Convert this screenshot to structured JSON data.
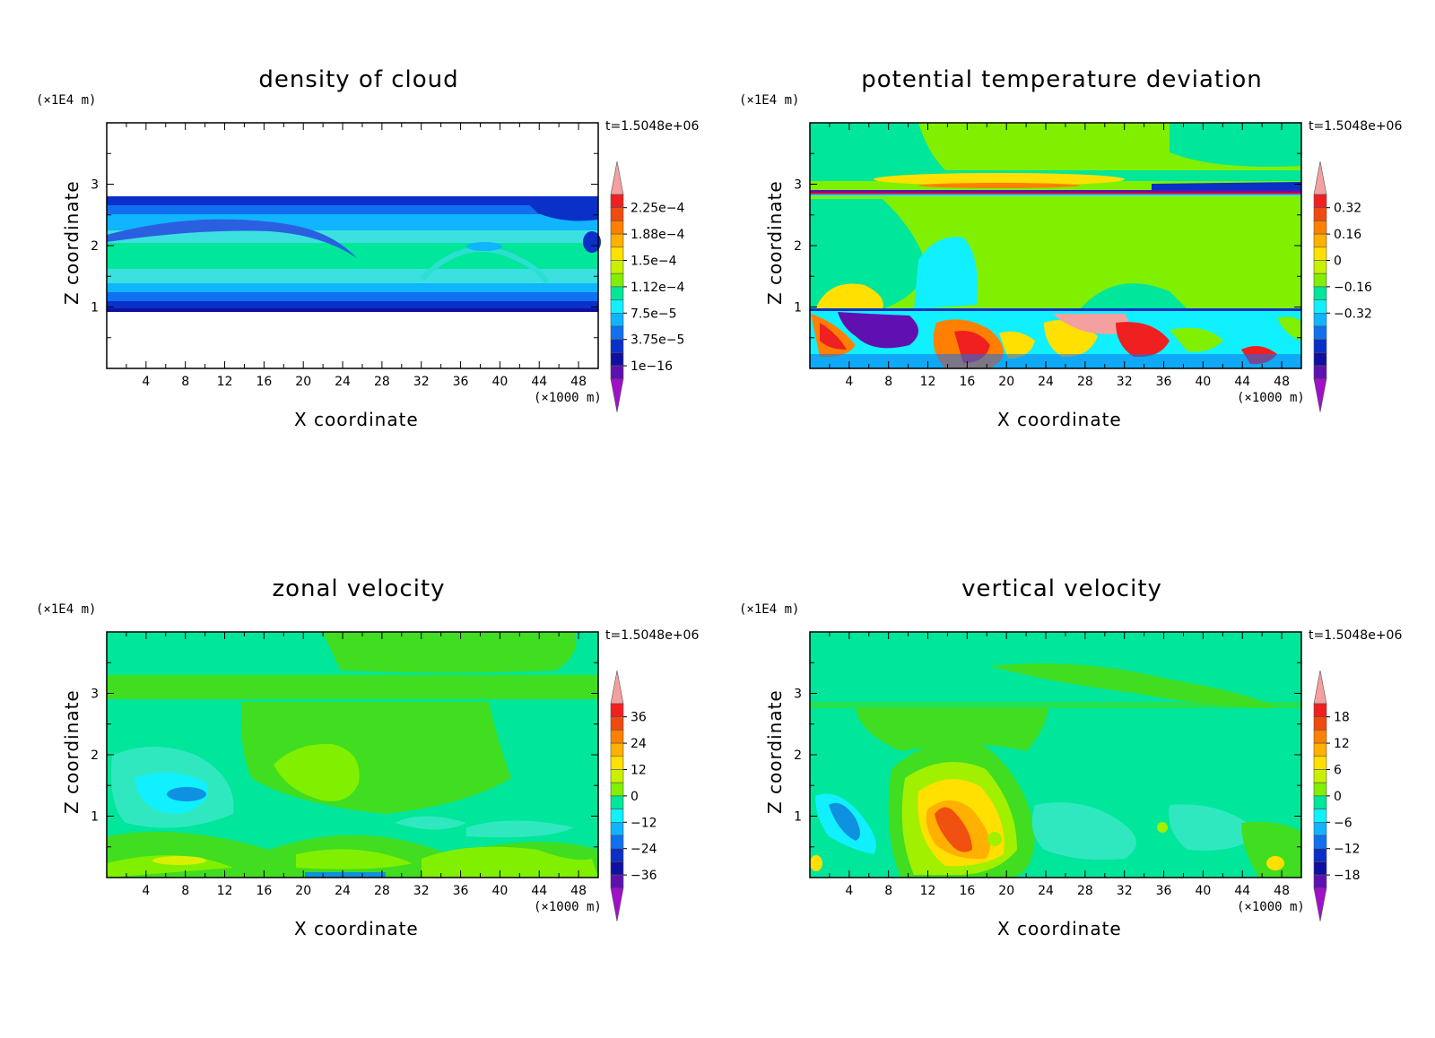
{
  "chart_data": [
    {
      "type": "heatmap",
      "title": "density of cloud",
      "xlabel": "X coordinate",
      "ylabel": "Z coordinate",
      "x_unit": "(×1000 m)",
      "z_unit": "(×1E4 m)",
      "time_label": "t=1.5048e+06",
      "xlim": [
        0,
        50
      ],
      "ylim": [
        0,
        4
      ],
      "x_ticks": [
        "4",
        "8",
        "12",
        "16",
        "20",
        "24",
        "28",
        "32",
        "36",
        "40",
        "44",
        "48"
      ],
      "y_ticks": [
        "1",
        "2",
        "3"
      ],
      "colorbar_labels": [
        "2.25e-4",
        "1.88e-4",
        "1.5e-4",
        "1.12e-4",
        "7.5e-5",
        "3.75e-5",
        "1e-16"
      ],
      "colorbar_label_index": [
        2,
        4,
        6,
        8,
        10,
        12,
        14
      ],
      "cloud_layer_z": [
        0.95,
        2.75
      ],
      "background": "#ffffff",
      "field_colors": {
        "base": "#00e69a",
        "edge": "#0a30c8",
        "mid": "#10b4ff",
        "light": "#3ce0e0",
        "arc": "#2a60e0"
      }
    },
    {
      "type": "heatmap",
      "title": "potential temperature deviation",
      "xlabel": "X coordinate",
      "ylabel": "Z coordinate",
      "x_unit": "(×1000 m)",
      "z_unit": "(×1E4 m)",
      "time_label": "t=1.5048e+06",
      "xlim": [
        0,
        50
      ],
      "ylim": [
        0,
        4
      ],
      "x_ticks": [
        "4",
        "8",
        "12",
        "16",
        "20",
        "24",
        "28",
        "32",
        "36",
        "40",
        "44",
        "48"
      ],
      "y_ticks": [
        "1",
        "2",
        "3"
      ],
      "colorbar_labels": [
        "0.32",
        "0.16",
        "0",
        "-0.16",
        "-0.32"
      ],
      "colorbar_label_index": [
        2,
        4,
        6,
        8,
        10
      ],
      "background": "#80f000",
      "field_colors": {
        "base": "#80f000",
        "green": "#00e69a",
        "cyan": "#10f0ff",
        "blue": "#0a30c8",
        "purple": "#6010b0",
        "red": "#f02020",
        "orange": "#ff8000",
        "yellow": "#ffe000",
        "pink": "#f4a0a0"
      }
    },
    {
      "type": "heatmap",
      "title": "zonal velocity",
      "xlabel": "X coordinate",
      "ylabel": "Z coordinate",
      "x_unit": "(×1000 m)",
      "z_unit": "(×1E4 m)",
      "time_label": "t=1.5048e+06",
      "xlim": [
        0,
        50
      ],
      "ylim": [
        0,
        4
      ],
      "x_ticks": [
        "4",
        "8",
        "12",
        "16",
        "20",
        "24",
        "28",
        "32",
        "36",
        "40",
        "44",
        "48"
      ],
      "y_ticks": [
        "1",
        "2",
        "3"
      ],
      "colorbar_labels": [
        "36",
        "24",
        "12",
        "0",
        "-12",
        "-24",
        "-36"
      ],
      "colorbar_label_index": [
        2,
        4,
        6,
        8,
        10,
        12,
        14
      ],
      "background": "#00e69a",
      "field_colors": {
        "base": "#00e69a",
        "green": "#40dd20",
        "lime": "#80f000",
        "cyan": "#10f0ff",
        "teal": "#30e8c0",
        "blue": "#1090e0",
        "yellow": "#d8f000"
      }
    },
    {
      "type": "heatmap",
      "title": "vertical velocity",
      "xlabel": "X coordinate",
      "ylabel": "Z coordinate",
      "x_unit": "(×1000 m)",
      "z_unit": "(×1E4 m)",
      "time_label": "t=1.5048e+06",
      "xlim": [
        0,
        50
      ],
      "ylim": [
        0,
        4
      ],
      "x_ticks": [
        "4",
        "8",
        "12",
        "16",
        "20",
        "24",
        "28",
        "32",
        "36",
        "40",
        "44",
        "48"
      ],
      "y_ticks": [
        "1",
        "2",
        "3"
      ],
      "colorbar_labels": [
        "18",
        "12",
        "6",
        "0",
        "-6",
        "-12",
        "-18"
      ],
      "colorbar_label_index": [
        2,
        4,
        6,
        8,
        10,
        12,
        14
      ],
      "background": "#00e69a",
      "field_colors": {
        "base": "#00e69a",
        "green": "#40dd20",
        "lime": "#a0f000",
        "yellow": "#ffe000",
        "orange": "#ff9000",
        "redorange": "#f05010",
        "cyan": "#10f0ff",
        "blue": "#1090e0"
      }
    }
  ],
  "colorbar_colors": [
    "#f4a0a0",
    "#f02020",
    "#f04a10",
    "#ff8000",
    "#ffb000",
    "#ffe000",
    "#c8f000",
    "#80f000",
    "#00e69a",
    "#10f0ff",
    "#10b4ff",
    "#1070f0",
    "#0a30c8",
    "#1010a0",
    "#6010b0",
    "#a010c8"
  ]
}
